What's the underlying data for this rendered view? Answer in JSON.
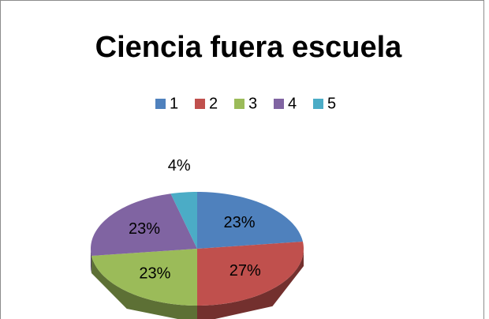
{
  "chart_data": {
    "type": "pie",
    "title": "Ciencia fuera escuela",
    "categories": [
      "1",
      "2",
      "3",
      "4",
      "5"
    ],
    "values": [
      23,
      27,
      23,
      23,
      4
    ],
    "value_labels": [
      "23%",
      "27%",
      "23%",
      "23%",
      "4%"
    ],
    "colors": [
      "#4f81bd",
      "#c0504d",
      "#9bbb59",
      "#8064a2",
      "#4bacc6"
    ],
    "legend": "top"
  }
}
